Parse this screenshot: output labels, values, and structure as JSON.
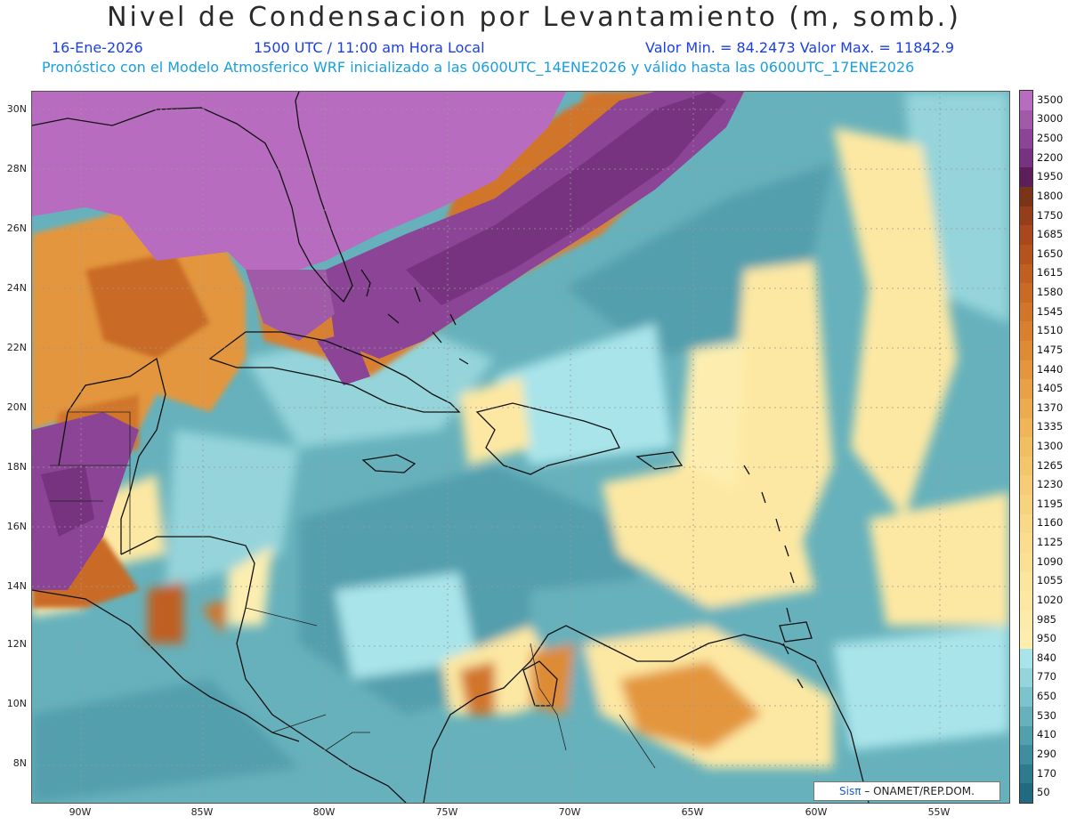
{
  "header": {
    "title": "Nivel de Condensacion por Levantamiento (m, somb.)",
    "date": "16-Ene-2026",
    "time": "1500 UTC / 11:00 am Hora Local",
    "value_range": "Valor Min. = 84.2473   Valor Max. = 11842.9",
    "model_info": "Pronóstico con el Modelo Atmosferico WRF inicializado a las 0600UTC_14ENE2026 y válido hasta las  0600UTC_17ENE2026"
  },
  "axes": {
    "lat_labels": [
      "30N",
      "28N",
      "26N",
      "24N",
      "22N",
      "20N",
      "18N",
      "16N",
      "14N",
      "12N",
      "10N",
      "8N"
    ],
    "lon_labels": [
      "90W",
      "85W",
      "80W",
      "75W",
      "70W",
      "65W",
      "60W",
      "55W"
    ]
  },
  "colorbar": {
    "labels": [
      "3500",
      "3000",
      "2500",
      "2200",
      "1950",
      "1800",
      "1750",
      "1685",
      "1650",
      "1615",
      "1580",
      "1545",
      "1510",
      "1475",
      "1440",
      "1405",
      "1370",
      "1335",
      "1300",
      "1265",
      "1230",
      "1195",
      "1160",
      "1125",
      "1090",
      "1055",
      "1020",
      "985",
      "950",
      "840",
      "770",
      "650",
      "530",
      "410",
      "290",
      "170",
      "50"
    ],
    "colors": [
      "#b86cc0",
      "#a05aa8",
      "#8c4596",
      "#773380",
      "#5c1f5c",
      "#7a3418",
      "#953f1a",
      "#a8481c",
      "#b5531f",
      "#c05f22",
      "#c96a26",
      "#d1752b",
      "#d88030",
      "#de8b36",
      "#e3963d",
      "#e8a145",
      "#ecab4e",
      "#efb558",
      "#f2be62",
      "#f4c66c",
      "#f6cd76",
      "#f8d37f",
      "#f9d987",
      "#fadd8f",
      "#fbe196",
      "#fce59d",
      "#fde8a3",
      "#fdeba9",
      "#fdeeb0",
      "#a9e4ea",
      "#94d4da",
      "#7cc3cb",
      "#66b1bc",
      "#529fad",
      "#3f8d9e",
      "#2e7b8f",
      "#226a80"
    ]
  },
  "credit": {
    "logo": "Sisπ",
    "text": "– ONAMET/REP.DOM."
  }
}
